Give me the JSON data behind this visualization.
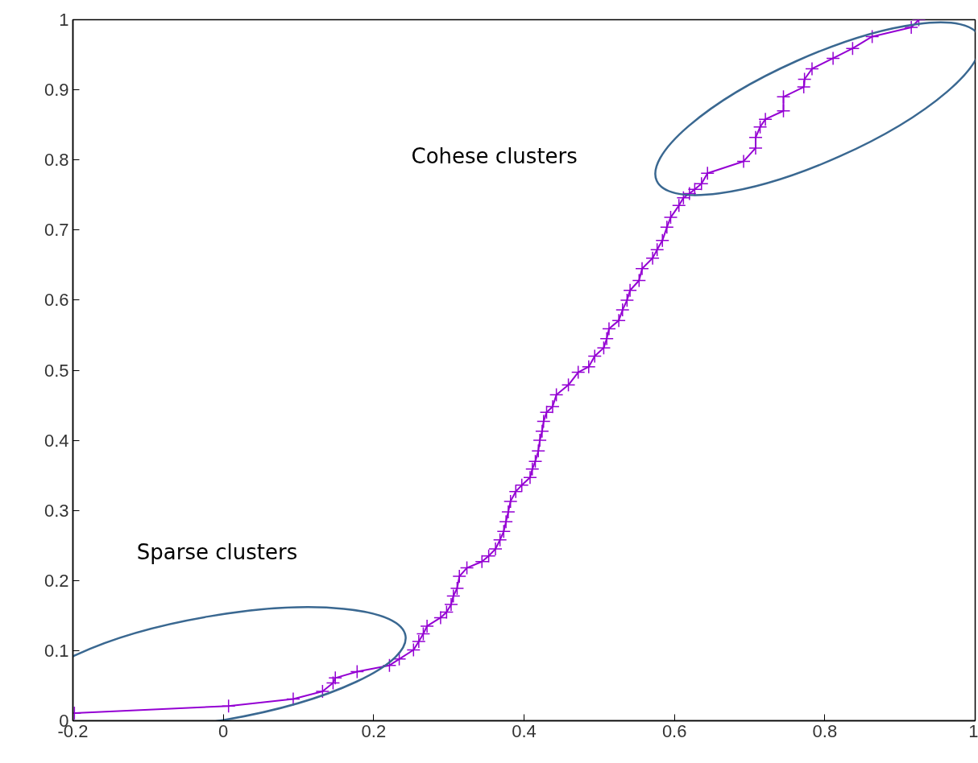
{
  "chart_data": {
    "type": "line",
    "x": [
      -0.198,
      0.007,
      0.093,
      0.132,
      0.146,
      0.149,
      0.178,
      0.221,
      0.234,
      0.253,
      0.26,
      0.266,
      0.271,
      0.289,
      0.297,
      0.303,
      0.306,
      0.311,
      0.314,
      0.324,
      0.344,
      0.353,
      0.362,
      0.368,
      0.373,
      0.376,
      0.379,
      0.382,
      0.389,
      0.397,
      0.408,
      0.411,
      0.415,
      0.419,
      0.421,
      0.424,
      0.426,
      0.43,
      0.438,
      0.443,
      0.459,
      0.472,
      0.486,
      0.494,
      0.506,
      0.51,
      0.513,
      0.526,
      0.531,
      0.537,
      0.541,
      0.553,
      0.557,
      0.571,
      0.577,
      0.584,
      0.59,
      0.595,
      0.606,
      0.612,
      0.62,
      0.627,
      0.636,
      0.644,
      0.692,
      0.708,
      0.708,
      0.714,
      0.721,
      0.745,
      0.745,
      0.772,
      0.773,
      0.783,
      0.811,
      0.837,
      0.863,
      0.915,
      0.925
    ],
    "series": [
      {
        "color": "#9400d3",
        "values": [
          0.011,
          0.021,
          0.031,
          0.042,
          0.054,
          0.061,
          0.07,
          0.079,
          0.088,
          0.101,
          0.113,
          0.124,
          0.135,
          0.147,
          0.155,
          0.166,
          0.178,
          0.189,
          0.206,
          0.218,
          0.227,
          0.235,
          0.245,
          0.258,
          0.27,
          0.284,
          0.298,
          0.313,
          0.327,
          0.336,
          0.347,
          0.359,
          0.37,
          0.385,
          0.4,
          0.413,
          0.427,
          0.44,
          0.448,
          0.465,
          0.479,
          0.497,
          0.505,
          0.52,
          0.532,
          0.545,
          0.559,
          0.571,
          0.586,
          0.6,
          0.614,
          0.628,
          0.645,
          0.66,
          0.672,
          0.685,
          0.704,
          0.718,
          0.735,
          0.746,
          0.752,
          0.758,
          0.766,
          0.781,
          0.798,
          0.817,
          0.832,
          0.847,
          0.858,
          0.87,
          0.89,
          0.904,
          0.915,
          0.93,
          0.945,
          0.959,
          0.976,
          0.989,
          1.0
        ]
      }
    ],
    "xlim": [
      -0.2,
      1
    ],
    "ylim": [
      0,
      1
    ],
    "xticks": [
      -0.2,
      0,
      0.2,
      0.4,
      0.6,
      0.8,
      1
    ],
    "yticks": [
      0,
      0.1,
      0.2,
      0.3,
      0.4,
      0.5,
      0.6,
      0.7,
      0.8,
      0.9,
      1
    ],
    "marker": "cross",
    "line_style": "solid",
    "grid": false,
    "annotations": [
      "Cohese clusters",
      "Sparse clusters"
    ]
  }
}
